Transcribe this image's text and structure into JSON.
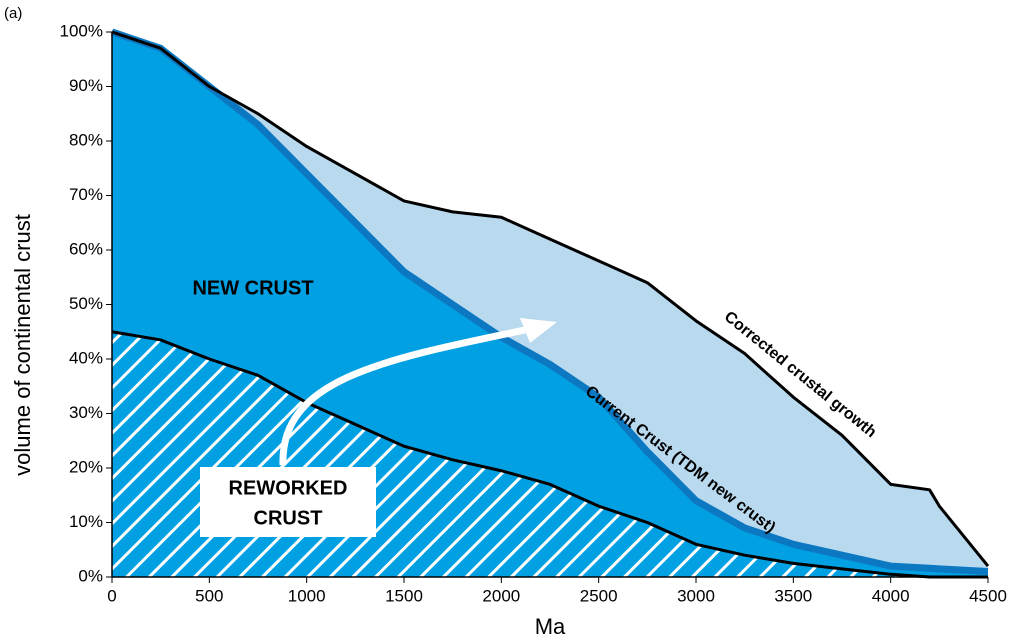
{
  "chart_data": {
    "type": "area",
    "panel_label": "(a)",
    "xlabel": "Ma",
    "ylabel": "volume of continental crust",
    "x": [
      0,
      250,
      500,
      750,
      1000,
      1250,
      1500,
      1750,
      2000,
      2250,
      2500,
      2750,
      3000,
      3250,
      3500,
      3750,
      4000,
      4200,
      4250,
      4500
    ],
    "series": [
      {
        "name": "Corrected crustal growth",
        "color": "#b9d9ef",
        "line_color": "#000000",
        "values": [
          100,
          97,
          90,
          85,
          79,
          74,
          69,
          67,
          66,
          62,
          58,
          54,
          47,
          41,
          33,
          26,
          17,
          16,
          13,
          2
        ]
      },
      {
        "name": "Current Crust (TDM new crust)",
        "color": "#00a0e3",
        "line_color": "#0d78c2",
        "values": [
          100,
          97,
          90,
          83,
          74,
          65,
          56,
          50,
          44,
          39,
          33,
          23,
          14,
          9,
          6,
          4,
          2,
          1.6,
          1.5,
          1
        ]
      },
      {
        "name": "REWORKED CRUST",
        "color": "#00a0e3",
        "line_color": "#000000",
        "hatch": true,
        "values": [
          45,
          43.5,
          40,
          37,
          32,
          28,
          24,
          21.5,
          19.5,
          17,
          13,
          10,
          6,
          4,
          2.5,
          1.5,
          0.5,
          0,
          0,
          0
        ]
      }
    ],
    "annotations": {
      "new_crust": "NEW CRUST",
      "reworked": [
        "REWORKED",
        "CRUST"
      ]
    },
    "xlim": [
      0,
      4500
    ],
    "xticks": [
      0,
      500,
      1000,
      1500,
      2000,
      2500,
      3000,
      3500,
      4000,
      4500
    ],
    "ylim": [
      0,
      100
    ],
    "yticks": [
      {
        "value": 0,
        "label": "0%"
      },
      {
        "value": 10,
        "label": "10%"
      },
      {
        "value": 20,
        "label": "20%"
      },
      {
        "value": 30,
        "label": "30%"
      },
      {
        "value": 40,
        "label": "40%"
      },
      {
        "value": 50,
        "label": "50%"
      },
      {
        "value": 60,
        "label": "60%"
      },
      {
        "value": 70,
        "label": "70%"
      },
      {
        "value": 80,
        "label": "80%"
      },
      {
        "value": 90,
        "label": "90%"
      },
      {
        "value": 100,
        "label": "100%"
      }
    ]
  }
}
